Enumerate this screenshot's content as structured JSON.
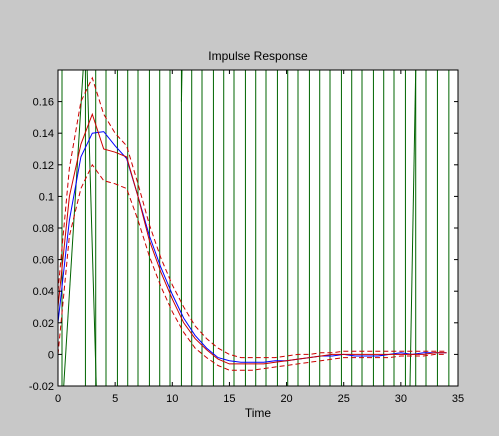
{
  "chart_data": {
    "type": "line",
    "title": "Impulse Response",
    "xlabel": "Time",
    "ylabel": "",
    "xlim": [
      0,
      35
    ],
    "ylim": [
      -0.02,
      0.18
    ],
    "x_ticks": [
      0,
      5,
      10,
      15,
      20,
      25,
      30,
      35
    ],
    "y_ticks": [
      -0.02,
      0,
      0.02,
      0.04,
      0.06,
      0.08,
      0.1,
      0.12,
      0.14,
      0.16
    ],
    "x_tick_labels": [
      "0",
      "5",
      "10",
      "15",
      "20",
      "25",
      "30",
      "35"
    ],
    "y_tick_labels": [
      "-0.02",
      "0",
      "0.02",
      "0.04",
      "0.06",
      "0.08",
      "0.1",
      "0.12",
      "0.14",
      "0.16"
    ],
    "grid": false,
    "series": [
      {
        "color": "#0000ff",
        "style": "solid",
        "points": [
          [
            0,
            0.02
          ],
          [
            1,
            0.085
          ],
          [
            2,
            0.125
          ],
          [
            3,
            0.14
          ],
          [
            4,
            0.141
          ],
          [
            5,
            0.132
          ],
          [
            6,
            0.124
          ],
          [
            7,
            0.1
          ],
          [
            8,
            0.075
          ],
          [
            9,
            0.055
          ],
          [
            10,
            0.038
          ],
          [
            11,
            0.023
          ],
          [
            12,
            0.012
          ],
          [
            13,
            0.004
          ],
          [
            14,
            -0.002
          ],
          [
            15,
            -0.004
          ],
          [
            16,
            -0.005
          ],
          [
            17,
            -0.005
          ],
          [
            18,
            -0.005
          ],
          [
            19,
            -0.004
          ],
          [
            20,
            -0.004
          ],
          [
            21,
            -0.003
          ],
          [
            22,
            -0.002
          ],
          [
            23,
            -0.001
          ],
          [
            24,
            -0.001
          ],
          [
            25,
            0
          ],
          [
            26,
            -0.001
          ],
          [
            27,
            -0.001
          ],
          [
            28,
            -0.001
          ],
          [
            29,
            0
          ],
          [
            30,
            0.001
          ],
          [
            31,
            0
          ],
          [
            32,
            0.001
          ],
          [
            33,
            0.001
          ],
          [
            34,
            0.001
          ]
        ]
      },
      {
        "color": "#cc0000",
        "style": "solid",
        "points": [
          [
            0,
            0.03
          ],
          [
            1,
            0.1
          ],
          [
            2,
            0.133
          ],
          [
            3,
            0.152
          ],
          [
            4,
            0.13
          ],
          [
            5,
            0.128
          ],
          [
            6,
            0.125
          ],
          [
            7,
            0.1
          ],
          [
            8,
            0.072
          ],
          [
            9,
            0.052
          ],
          [
            10,
            0.035
          ],
          [
            11,
            0.02
          ],
          [
            12,
            0.01
          ],
          [
            13,
            0.003
          ],
          [
            14,
            -0.003
          ],
          [
            15,
            -0.006
          ],
          [
            16,
            -0.006
          ],
          [
            17,
            -0.006
          ],
          [
            18,
            -0.006
          ],
          [
            19,
            -0.005
          ],
          [
            20,
            -0.004
          ],
          [
            21,
            -0.003
          ],
          [
            22,
            -0.002
          ],
          [
            23,
            -0.001
          ],
          [
            24,
            0
          ],
          [
            25,
            0
          ],
          [
            26,
            0
          ],
          [
            27,
            0
          ],
          [
            28,
            0
          ],
          [
            29,
            0
          ],
          [
            30,
            0
          ],
          [
            31,
            0
          ],
          [
            32,
            0
          ],
          [
            33,
            0.001
          ],
          [
            34,
            0.001
          ]
        ]
      },
      {
        "color": "#cc0000",
        "style": "dashed",
        "points": [
          [
            0,
            0.04
          ],
          [
            1,
            0.118
          ],
          [
            2,
            0.16
          ],
          [
            3,
            0.175
          ],
          [
            4,
            0.152
          ],
          [
            5,
            0.14
          ],
          [
            6,
            0.132
          ],
          [
            7,
            0.108
          ],
          [
            8,
            0.082
          ],
          [
            9,
            0.061
          ],
          [
            10,
            0.044
          ],
          [
            11,
            0.03
          ],
          [
            12,
            0.018
          ],
          [
            13,
            0.01
          ],
          [
            14,
            0.004
          ],
          [
            15,
            0
          ],
          [
            16,
            -0.002
          ],
          [
            17,
            -0.002
          ],
          [
            18,
            -0.002
          ],
          [
            19,
            -0.002
          ],
          [
            20,
            -0.001
          ],
          [
            21,
            0
          ],
          [
            22,
            0
          ],
          [
            23,
            0.001
          ],
          [
            24,
            0.001
          ],
          [
            25,
            0.002
          ],
          [
            26,
            0.002
          ],
          [
            27,
            0.002
          ],
          [
            28,
            0.002
          ],
          [
            29,
            0.002
          ],
          [
            30,
            0.002
          ],
          [
            31,
            0.002
          ],
          [
            32,
            0.002
          ],
          [
            33,
            0.002
          ],
          [
            34,
            0.002
          ]
        ]
      },
      {
        "color": "#cc0000",
        "style": "dashed",
        "points": [
          [
            0,
            0.0
          ],
          [
            1,
            0.075
          ],
          [
            2,
            0.105
          ],
          [
            3,
            0.12
          ],
          [
            4,
            0.11
          ],
          [
            5,
            0.108
          ],
          [
            6,
            0.105
          ],
          [
            7,
            0.085
          ],
          [
            8,
            0.062
          ],
          [
            9,
            0.043
          ],
          [
            10,
            0.027
          ],
          [
            11,
            0.014
          ],
          [
            12,
            0.004
          ],
          [
            13,
            -0.002
          ],
          [
            14,
            -0.007
          ],
          [
            15,
            -0.01
          ],
          [
            16,
            -0.01
          ],
          [
            17,
            -0.01
          ],
          [
            18,
            -0.009
          ],
          [
            19,
            -0.008
          ],
          [
            20,
            -0.007
          ],
          [
            21,
            -0.006
          ],
          [
            22,
            -0.005
          ],
          [
            23,
            -0.004
          ],
          [
            24,
            -0.003
          ],
          [
            25,
            -0.002
          ],
          [
            26,
            -0.002
          ],
          [
            27,
            -0.002
          ],
          [
            28,
            -0.002
          ],
          [
            29,
            -0.002
          ],
          [
            30,
            -0.001
          ],
          [
            31,
            -0.001
          ],
          [
            32,
            -0.001
          ],
          [
            33,
            0
          ],
          [
            34,
            0
          ]
        ]
      }
    ],
    "green_vertical_lines": {
      "color": "#006400",
      "x": [
        0.35,
        2.4,
        3.3,
        4.2,
        5.2,
        6.1,
        7.0,
        8.0,
        8.9,
        9.8,
        10.8,
        11.7,
        12.6,
        13.6,
        14.5,
        15.4,
        16.4,
        17.3,
        18.2,
        19.2,
        20.1,
        21.0,
        22.0,
        22.9,
        23.8,
        24.8,
        25.7,
        26.6,
        27.6,
        28.5,
        29.4,
        30.4,
        31.3,
        32.2,
        33.2,
        34.2
      ],
      "diagonals": [
        [
          [
            0.5,
            -0.02
          ],
          [
            2.2,
            0.18
          ]
        ],
        [
          [
            2.55,
            0.18
          ],
          [
            3.35,
            -0.02
          ]
        ],
        [
          [
            10.8,
            0.16
          ],
          [
            10.85,
            0.18
          ]
        ],
        [
          [
            30.8,
            -0.02
          ],
          [
            31.3,
            0.18
          ]
        ]
      ]
    }
  }
}
